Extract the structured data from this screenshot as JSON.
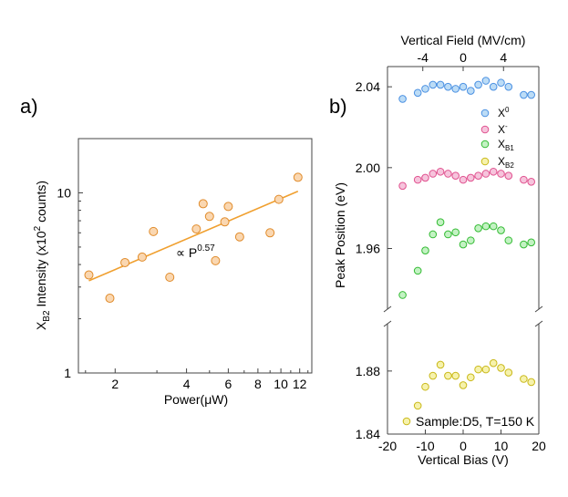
{
  "chart_data": [
    {
      "panel": "a)",
      "type": "scatter",
      "xscale": "log",
      "yscale": "log",
      "xlabel_parts": [
        "Power(",
        "μ",
        "W)"
      ],
      "ylabel_parts": [
        "X",
        "B2",
        " Intensity (x10",
        "2",
        " counts)"
      ],
      "xlim": [
        1.4,
        13.5
      ],
      "ylim": [
        1,
        20
      ],
      "xticks": [
        2,
        4,
        6,
        8,
        10,
        12
      ],
      "xtick_labels": [
        "2",
        "4",
        "6",
        "8",
        "10",
        "12"
      ],
      "yticks": [
        1,
        10
      ],
      "ytick_labels": [
        "1",
        "10"
      ],
      "annotation": {
        "text": "∝ P",
        "superscript": "0.57"
      },
      "points": {
        "x": [
          1.55,
          1.9,
          2.2,
          2.6,
          2.9,
          3.4,
          4.4,
          4.7,
          5.0,
          5.3,
          5.8,
          6.0,
          6.7,
          9.0,
          9.8,
          11.8
        ],
        "y": [
          3.5,
          2.6,
          4.1,
          4.4,
          6.1,
          3.4,
          6.3,
          8.7,
          7.4,
          4.2,
          6.9,
          8.4,
          5.7,
          6.0,
          9.2,
          12.2
        ]
      },
      "fit": {
        "x": [
          1.55,
          11.8
        ],
        "y": [
          3.25,
          10.2
        ],
        "exponent": 0.57
      },
      "colors": {
        "marker_fill": "#fad7b1",
        "marker_edge": "#e08b2a",
        "fit_line": "#f0a030"
      }
    },
    {
      "panel": "b)",
      "type": "scatter",
      "xlabel": "Vertical Bias (V)",
      "ylabel": "Peak Position (eV)",
      "top_xlabel": "Vertical Field (MV/cm)",
      "xlim": [
        -20,
        20
      ],
      "xticks": [
        -20,
        -10,
        0,
        10,
        20
      ],
      "xtick_labels": [
        "-20",
        "-10",
        "0",
        "10",
        "20"
      ],
      "top_xlim": [
        -7.5,
        7.5
      ],
      "top_xticks": [
        -4,
        0,
        4
      ],
      "top_xtick_labels": [
        "-4",
        "0",
        "4"
      ],
      "broken_axis": true,
      "upper_ylim": [
        1.93,
        2.05
      ],
      "upper_yticks": [
        1.96,
        2.0,
        2.04
      ],
      "upper_ytick_labels": [
        "1.96",
        "2.00",
        "2.04"
      ],
      "lower_ylim": [
        1.84,
        1.91
      ],
      "lower_yticks": [
        1.84,
        1.88
      ],
      "lower_ytick_labels": [
        "1.84",
        "1.88"
      ],
      "legend_position": "top-right",
      "annotation": "Sample:D5, T=150 K",
      "series": [
        {
          "name": "X⁰",
          "name_base": "X",
          "name_script": "0",
          "script_type": "sup",
          "axis": "upper",
          "fill": "#bcdcf6",
          "edge": "#4a90e2",
          "x": [
            -16,
            -12,
            -10,
            -8,
            -6,
            -4,
            -2,
            0,
            2,
            4,
            6,
            8,
            10,
            12,
            16,
            18
          ],
          "y": [
            2.034,
            2.037,
            2.039,
            2.041,
            2.041,
            2.04,
            2.039,
            2.04,
            2.038,
            2.041,
            2.043,
            2.04,
            2.042,
            2.04,
            2.036,
            2.036
          ]
        },
        {
          "name": "X⁻",
          "name_base": "X",
          "name_script": "-",
          "script_type": "sup",
          "axis": "upper",
          "fill": "#f6c4dc",
          "edge": "#e0508e",
          "x": [
            -16,
            -12,
            -10,
            -8,
            -6,
            -4,
            -2,
            0,
            2,
            4,
            6,
            8,
            10,
            12,
            16,
            18
          ],
          "y": [
            1.991,
            1.994,
            1.995,
            1.997,
            1.998,
            1.997,
            1.996,
            1.994,
            1.995,
            1.996,
            1.997,
            1.998,
            1.997,
            1.996,
            1.994,
            1.993
          ]
        },
        {
          "name": "X_B1",
          "name_base": "X",
          "name_script": "B1",
          "script_type": "sub",
          "axis": "upper",
          "fill": "#c3f2c3",
          "edge": "#33bb33",
          "x": [
            -16,
            -12,
            -10,
            -8,
            -6,
            -4,
            -2,
            0,
            2,
            4,
            6,
            8,
            10,
            12,
            16,
            18
          ],
          "y": [
            1.937,
            1.949,
            1.959,
            1.967,
            1.973,
            1.967,
            1.968,
            1.962,
            1.964,
            1.97,
            1.971,
            1.971,
            1.969,
            1.964,
            1.962,
            1.963
          ]
        },
        {
          "name": "X_B2",
          "name_base": "X",
          "name_script": "B2",
          "script_type": "sub",
          "axis": "lower",
          "fill": "#f6f2ac",
          "edge": "#c9b818",
          "x": [
            -12,
            -10,
            -8,
            -6,
            -4,
            -2,
            0,
            2,
            4,
            6,
            8,
            10,
            12,
            16,
            18
          ],
          "y": [
            1.858,
            1.87,
            1.877,
            1.884,
            1.877,
            1.877,
            1.871,
            1.876,
            1.881,
            1.881,
            1.885,
            1.882,
            1.879,
            1.875,
            1.873
          ]
        }
      ]
    }
  ]
}
